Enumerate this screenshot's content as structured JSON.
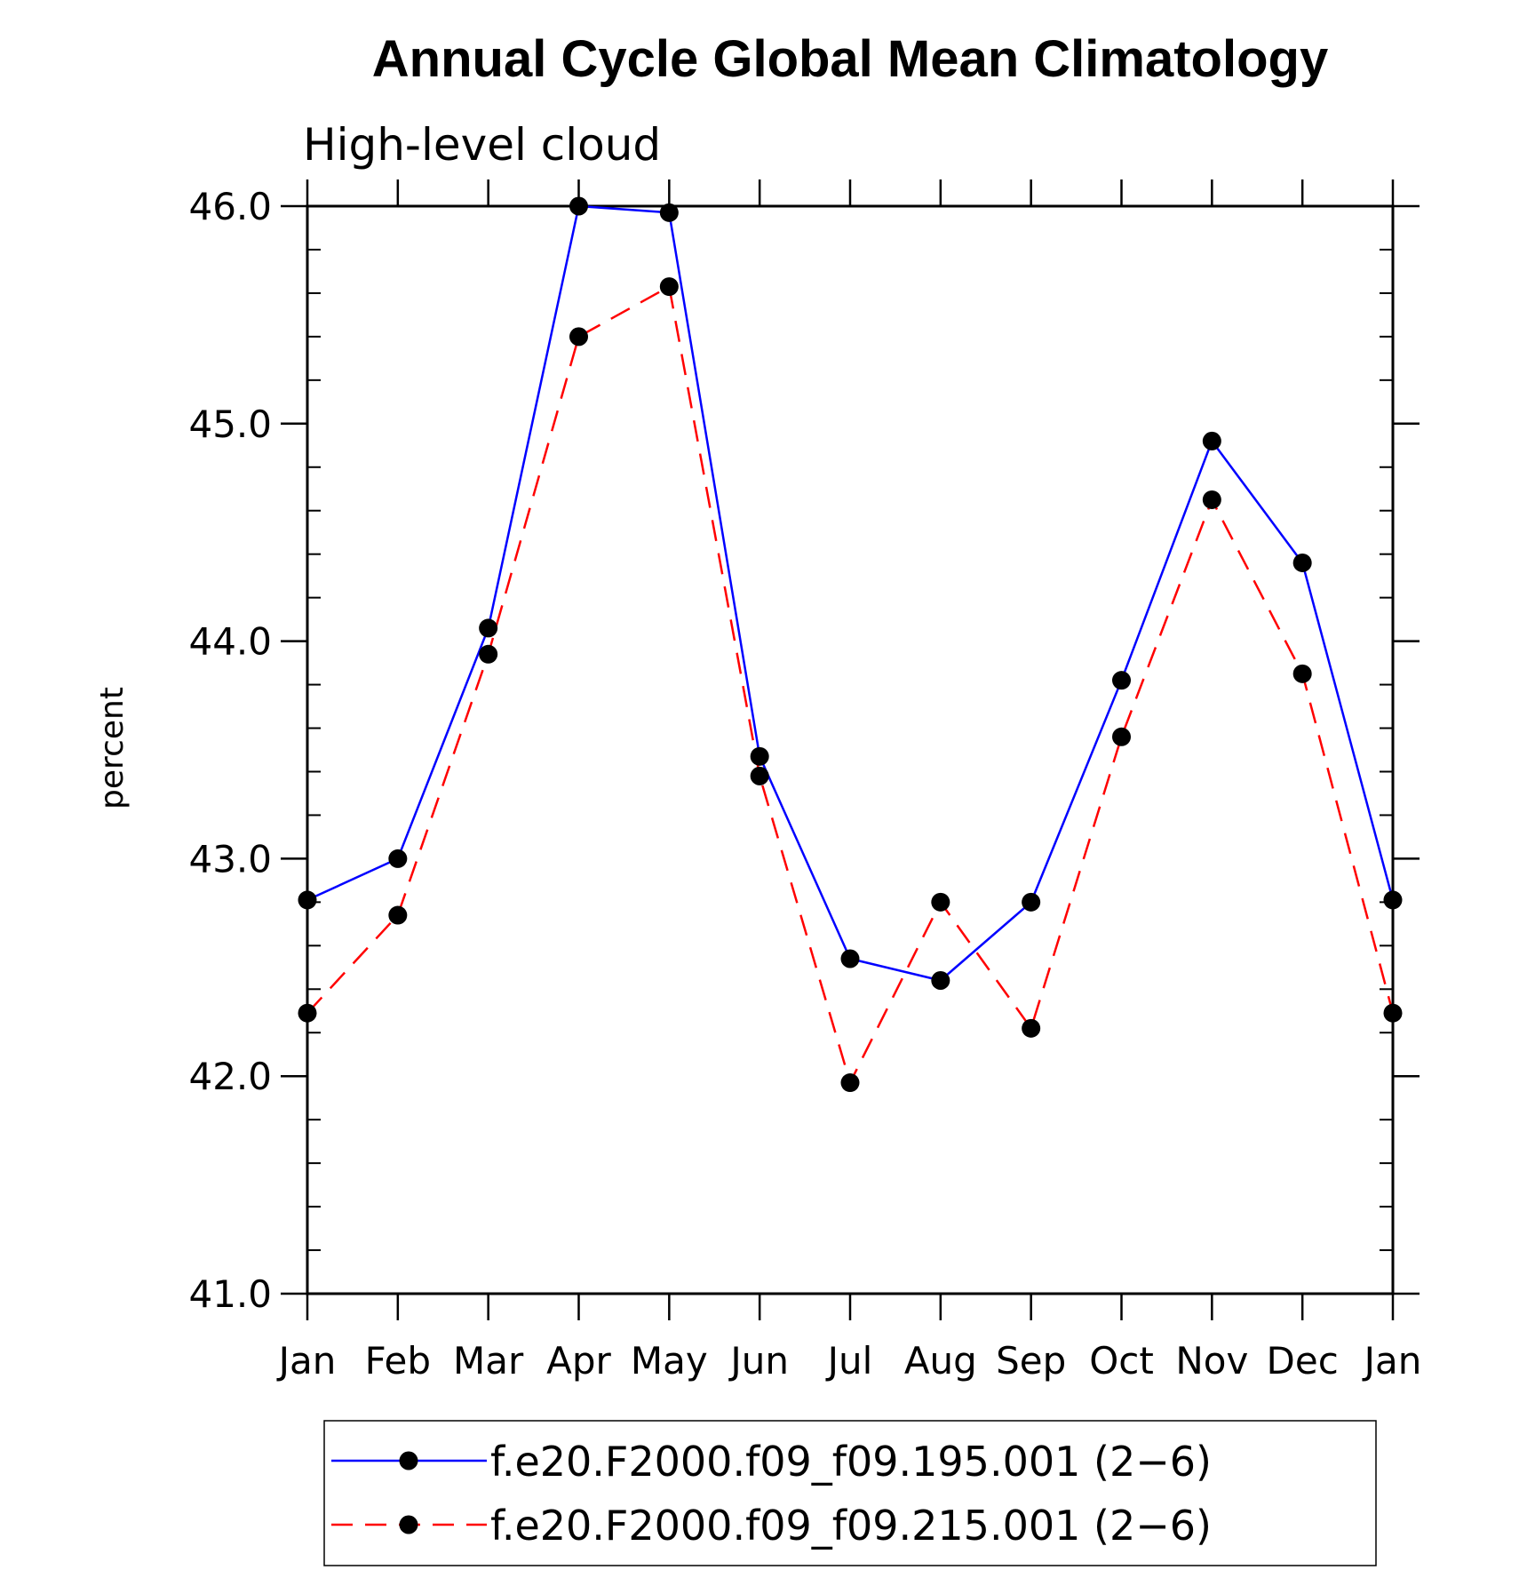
{
  "chart_data": {
    "type": "line",
    "title": "Annual Cycle Global Mean Climatology",
    "subtitle": "High-level cloud",
    "ylabel": "percent",
    "xlabel": "",
    "categories": [
      "Jan",
      "Feb",
      "Mar",
      "Apr",
      "May",
      "Jun",
      "Jul",
      "Aug",
      "Sep",
      "Oct",
      "Nov",
      "Dec",
      "Jan"
    ],
    "ylim": [
      41.0,
      46.0
    ],
    "yticks": [
      "41.0",
      "42.0",
      "43.0",
      "44.0",
      "45.0",
      "46.0"
    ],
    "grid": false,
    "legend_position": "bottom",
    "series": [
      {
        "name": "f.e20.F2000.f09_f09.195.001 (2−6)",
        "color": "#0000ff",
        "dash": "solid",
        "marker": "filled-circle",
        "values": [
          42.81,
          43.0,
          44.06,
          46.0,
          45.97,
          43.47,
          42.54,
          42.44,
          42.8,
          43.82,
          44.92,
          44.36,
          42.81
        ]
      },
      {
        "name": "f.e20.F2000.f09_f09.215.001 (2−6)",
        "color": "#ff0000",
        "dash": "dashed",
        "marker": "filled-circle",
        "values": [
          42.29,
          42.74,
          43.94,
          45.4,
          45.63,
          43.38,
          41.97,
          42.8,
          42.22,
          43.56,
          44.65,
          43.85,
          42.29
        ]
      }
    ]
  }
}
